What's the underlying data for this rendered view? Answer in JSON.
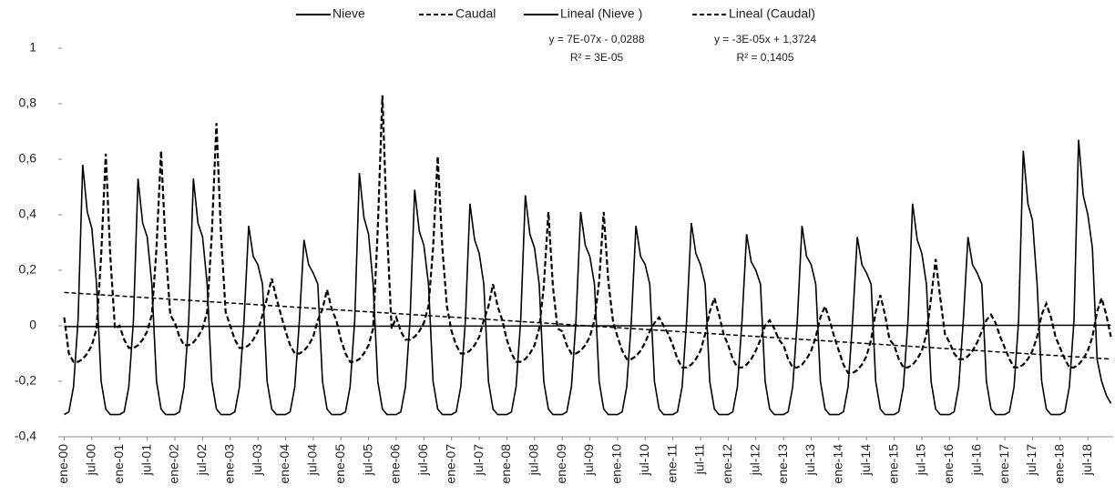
{
  "chart_data": {
    "type": "line",
    "categories": [
      "ene-00",
      null,
      null,
      null,
      null,
      null,
      "jul-00",
      null,
      null,
      null,
      null,
      null,
      "ene-01",
      null,
      null,
      null,
      null,
      null,
      "jul-01",
      null,
      null,
      null,
      null,
      null,
      "ene-02",
      null,
      null,
      null,
      null,
      null,
      "jul-02",
      null,
      null,
      null,
      null,
      null,
      "ene-03",
      null,
      null,
      null,
      null,
      null,
      "jul-03",
      null,
      null,
      null,
      null,
      null,
      "ene-04",
      null,
      null,
      null,
      null,
      null,
      "jul-04",
      null,
      null,
      null,
      null,
      null,
      "ene-05",
      null,
      null,
      null,
      null,
      null,
      "jul-05",
      null,
      null,
      null,
      null,
      null,
      "ene-06",
      null,
      null,
      null,
      null,
      null,
      "jul-06",
      null,
      null,
      null,
      null,
      null,
      "ene-07",
      null,
      null,
      null,
      null,
      null,
      "jul-07",
      null,
      null,
      null,
      null,
      null,
      "ene-08",
      null,
      null,
      null,
      null,
      null,
      "jul-08",
      null,
      null,
      null,
      null,
      null,
      "ene-09",
      null,
      null,
      null,
      null,
      null,
      "jul-09",
      null,
      null,
      null,
      null,
      null,
      "ene-10",
      null,
      null,
      null,
      null,
      null,
      "jul-10",
      null,
      null,
      null,
      null,
      null,
      "ene-11",
      null,
      null,
      null,
      null,
      null,
      "jul-11",
      null,
      null,
      null,
      null,
      null,
      "ene-12",
      null,
      null,
      null,
      null,
      null,
      "jul-12",
      null,
      null,
      null,
      null,
      null,
      "ene-13",
      null,
      null,
      null,
      null,
      null,
      "jul-13",
      null,
      null,
      null,
      null,
      null,
      "ene-14",
      null,
      null,
      null,
      null,
      null,
      "jul-14",
      null,
      null,
      null,
      null,
      null,
      "ene-15",
      null,
      null,
      null,
      null,
      null,
      "jul-15",
      null,
      null,
      null,
      null,
      null,
      "ene-16",
      null,
      null,
      null,
      null,
      null,
      "jul-16",
      null,
      null,
      null,
      null,
      null,
      "ene-17",
      null,
      null,
      null,
      null,
      null,
      "jul-17",
      null,
      null,
      null,
      null,
      null,
      "ene-18",
      null,
      null,
      null,
      null,
      null,
      "jul-18",
      null,
      null,
      null,
      null,
      null
    ],
    "series": [
      {
        "name": "Nieve",
        "color": "#000000",
        "dashed": false,
        "values": [
          -0.32,
          -0.31,
          -0.22,
          0.02,
          0.58,
          0.41,
          0.35,
          0.15,
          -0.2,
          -0.3,
          -0.32,
          -0.32,
          -0.32,
          -0.31,
          -0.22,
          0.02,
          0.53,
          0.37,
          0.32,
          0.15,
          -0.2,
          -0.3,
          -0.32,
          -0.32,
          -0.32,
          -0.31,
          -0.22,
          0.02,
          0.53,
          0.37,
          0.32,
          0.15,
          -0.2,
          -0.3,
          -0.32,
          -0.32,
          -0.32,
          -0.31,
          -0.22,
          0.02,
          0.36,
          0.25,
          0.22,
          0.15,
          -0.2,
          -0.3,
          -0.32,
          -0.32,
          -0.32,
          -0.31,
          -0.22,
          0.02,
          0.31,
          0.22,
          0.19,
          0.15,
          -0.2,
          -0.3,
          -0.32,
          -0.32,
          -0.32,
          -0.31,
          -0.22,
          0.02,
          0.55,
          0.39,
          0.33,
          0.15,
          -0.2,
          -0.3,
          -0.32,
          -0.32,
          -0.32,
          -0.31,
          -0.22,
          0.02,
          0.49,
          0.34,
          0.29,
          0.15,
          -0.2,
          -0.3,
          -0.32,
          -0.32,
          -0.32,
          -0.31,
          -0.22,
          0.02,
          0.44,
          0.31,
          0.26,
          0.15,
          -0.2,
          -0.3,
          -0.32,
          -0.32,
          -0.32,
          -0.31,
          -0.22,
          0.02,
          0.47,
          0.33,
          0.28,
          0.15,
          -0.2,
          -0.3,
          -0.32,
          -0.32,
          -0.32,
          -0.31,
          -0.22,
          0.02,
          0.41,
          0.29,
          0.25,
          0.15,
          -0.2,
          -0.3,
          -0.32,
          -0.32,
          -0.32,
          -0.31,
          -0.22,
          0.02,
          0.36,
          0.25,
          0.22,
          0.15,
          -0.2,
          -0.3,
          -0.32,
          -0.32,
          -0.32,
          -0.31,
          -0.22,
          0.02,
          0.37,
          0.26,
          0.22,
          0.15,
          -0.2,
          -0.3,
          -0.32,
          -0.32,
          -0.32,
          -0.31,
          -0.22,
          0.02,
          0.33,
          0.23,
          0.2,
          0.15,
          -0.2,
          -0.3,
          -0.32,
          -0.32,
          -0.32,
          -0.31,
          -0.22,
          0.02,
          0.36,
          0.25,
          0.22,
          0.15,
          -0.2,
          -0.3,
          -0.32,
          -0.32,
          -0.32,
          -0.31,
          -0.22,
          0.02,
          0.32,
          0.22,
          0.19,
          0.15,
          -0.2,
          -0.3,
          -0.32,
          -0.32,
          -0.32,
          -0.31,
          -0.22,
          0.02,
          0.44,
          0.31,
          0.26,
          0.15,
          -0.2,
          -0.3,
          -0.32,
          -0.32,
          -0.32,
          -0.31,
          -0.22,
          0.02,
          0.32,
          0.22,
          0.19,
          0.15,
          -0.2,
          -0.3,
          -0.32,
          -0.32,
          -0.32,
          -0.31,
          -0.22,
          0.02,
          0.63,
          0.44,
          0.38,
          0.15,
          -0.2,
          -0.3,
          -0.32,
          -0.32,
          -0.32,
          -0.31,
          -0.22,
          0.02,
          0.67,
          0.47,
          0.4,
          0.28,
          -0.12,
          -0.2,
          -0.25,
          -0.28
        ]
      },
      {
        "name": "Caudal",
        "color": "#000000",
        "dashed": true,
        "values": [
          0.03,
          -0.1,
          -0.13,
          -0.13,
          -0.12,
          -0.1,
          -0.07,
          -0.01,
          0.25,
          0.62,
          0.25,
          -0.01,
          0,
          -0.05,
          -0.08,
          -0.08,
          -0.07,
          -0.05,
          -0.02,
          0.04,
          0.28,
          0.63,
          0.28,
          0.04,
          0.01,
          -0.04,
          -0.07,
          -0.07,
          -0.06,
          -0.04,
          -0.01,
          0.05,
          0.33,
          0.73,
          0.33,
          0.05,
          0,
          -0.05,
          -0.08,
          -0.08,
          -0.07,
          -0.05,
          -0.02,
          0.04,
          0.1,
          0.17,
          0.1,
          0.04,
          -0.02,
          -0.07,
          -0.1,
          -0.1,
          -0.09,
          -0.07,
          -0.04,
          0.02,
          0.06,
          0.13,
          0.06,
          0.02,
          -0.05,
          -0.1,
          -0.13,
          -0.13,
          -0.12,
          -0.1,
          -0.07,
          -0.01,
          0.35,
          0.83,
          0.35,
          -0.01,
          0.03,
          -0.02,
          -0.05,
          -0.05,
          -0.04,
          -0.02,
          0.01,
          0.07,
          0.28,
          0.61,
          0.28,
          0.07,
          -0.02,
          -0.07,
          -0.1,
          -0.1,
          -0.09,
          -0.07,
          -0.04,
          0.02,
          0.07,
          0.15,
          0.07,
          0.02,
          -0.05,
          -0.1,
          -0.13,
          -0.13,
          -0.12,
          -0.1,
          -0.07,
          -0.01,
          0.14,
          0.41,
          0.14,
          -0.01,
          -0.02,
          -0.07,
          -0.1,
          -0.1,
          -0.09,
          -0.07,
          -0.04,
          0.02,
          0.16,
          0.41,
          0.16,
          0.02,
          -0.04,
          -0.09,
          -0.12,
          -0.12,
          -0.11,
          -0.09,
          -0.06,
          -0.02,
          0.01,
          0.03,
          0,
          -0.03,
          -0.07,
          -0.12,
          -0.15,
          -0.15,
          -0.14,
          -0.12,
          -0.09,
          -0.03,
          0.05,
          0.1,
          0.04,
          -0.03,
          -0.07,
          -0.12,
          -0.15,
          -0.15,
          -0.14,
          -0.12,
          -0.09,
          -0.05,
          0,
          0.02,
          -0.01,
          -0.05,
          -0.07,
          -0.12,
          -0.15,
          -0.15,
          -0.14,
          -0.12,
          -0.09,
          -0.04,
          0.03,
          0.07,
          0.02,
          -0.04,
          -0.09,
          -0.14,
          -0.17,
          -0.17,
          -0.16,
          -0.14,
          -0.11,
          -0.05,
          0.05,
          0.11,
          0.04,
          -0.05,
          -0.07,
          -0.12,
          -0.15,
          -0.15,
          -0.14,
          -0.12,
          -0.09,
          -0.03,
          0.1,
          0.24,
          0.1,
          -0.03,
          -0.06,
          -0.1,
          -0.12,
          -0.12,
          -0.11,
          -0.09,
          -0.06,
          -0.02,
          0.02,
          0.04,
          0.01,
          -0.04,
          -0.08,
          -0.12,
          -0.15,
          -0.15,
          -0.14,
          -0.12,
          -0.09,
          -0.04,
          0.04,
          0.08,
          0.03,
          -0.04,
          -0.08,
          -0.12,
          -0.15,
          -0.15,
          -0.14,
          -0.12,
          -0.09,
          -0.04,
          0.05,
          0.1,
          0.04,
          -0.04
        ]
      }
    ],
    "trendlines": [
      {
        "name": "Lineal (Nieve )",
        "color": "#000000",
        "dashed": false,
        "start": -0.003,
        "end": 0.002,
        "equation": "y = 7E-07x - 0,0288",
        "r2": "R² = 3E-05"
      },
      {
        "name": "Lineal (Caudal)",
        "color": "#000000",
        "dashed": true,
        "start": 0.12,
        "end": -0.12,
        "equation": "y = -3E-05x + 1,3724",
        "r2": "R² = 0,1405"
      }
    ],
    "ylim": [
      -0.4,
      1
    ],
    "yticks": [
      {
        "value": -0.4,
        "label": "-0,4"
      },
      {
        "value": -0.2,
        "label": "-0,2"
      },
      0,
      {
        "value": 0.2,
        "label": "0,2"
      },
      {
        "value": 0.4,
        "label": "0,4"
      },
      {
        "value": 0.6,
        "label": "0,6"
      },
      {
        "value": 0.8,
        "label": "0,8"
      },
      1
    ],
    "grid": false,
    "legend": "top"
  }
}
